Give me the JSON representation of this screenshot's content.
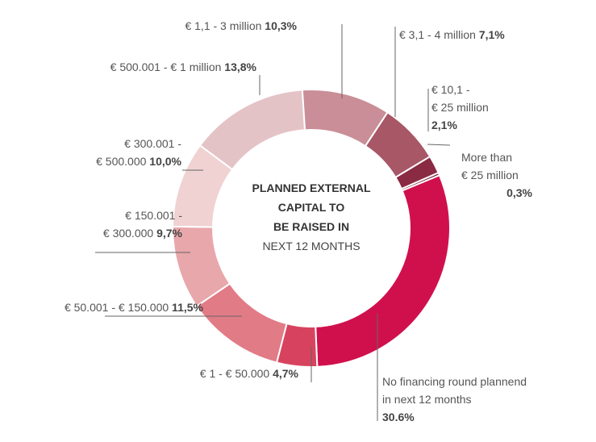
{
  "chart_data": {
    "type": "pie",
    "donut": true,
    "center_text": {
      "line1": "PLANNED EXTERNAL",
      "line2": "CAPITAL TO",
      "line3": "BE RAISED IN",
      "line4": "NEXT 12 MONTHS"
    },
    "slices": [
      {
        "label_lines": [
          "No financing round plannend",
          "in next 12 months"
        ],
        "value": 30.6,
        "value_text": "30.6%",
        "color": "#d0104c"
      },
      {
        "label_lines": [
          "€ 1 - € 50.000"
        ],
        "value": 4.7,
        "value_text": "4,7%",
        "color": "#d7435e"
      },
      {
        "label_lines": [
          "€ 50.001 - € 150.000"
        ],
        "value": 11.5,
        "value_text": "11,5%",
        "color": "#e17b86"
      },
      {
        "label_lines": [
          "€ 150.001 -",
          "€ 300.000"
        ],
        "value": 9.7,
        "value_text": "9,7%",
        "color": "#e8a7ab"
      },
      {
        "label_lines": [
          "€ 300.001 -",
          "€ 500.000"
        ],
        "value": 10.0,
        "value_text": "10,0%",
        "color": "#f0d2d2"
      },
      {
        "label_lines": [
          "€ 500.001 - € 1 million"
        ],
        "value": 13.8,
        "value_text": "13,8%",
        "color": "#e4c3c7"
      },
      {
        "label_lines": [
          "€ 1,1 - 3 million"
        ],
        "value": 10.3,
        "value_text": "10,3%",
        "color": "#c98e97"
      },
      {
        "label_lines": [
          "€ 3,1 - 4 million"
        ],
        "value": 7.1,
        "value_text": "7,1%",
        "color": "#a85766"
      },
      {
        "label_lines": [
          "€ 10,1 -",
          "€ 25 million"
        ],
        "value": 2.1,
        "value_text": "2,1%",
        "color": "#8a2a43"
      },
      {
        "label_lines": [
          "More than",
          "€ 25 million"
        ],
        "value": 0.3,
        "value_text": "0,3%",
        "color": "#6e0f2c"
      }
    ]
  }
}
